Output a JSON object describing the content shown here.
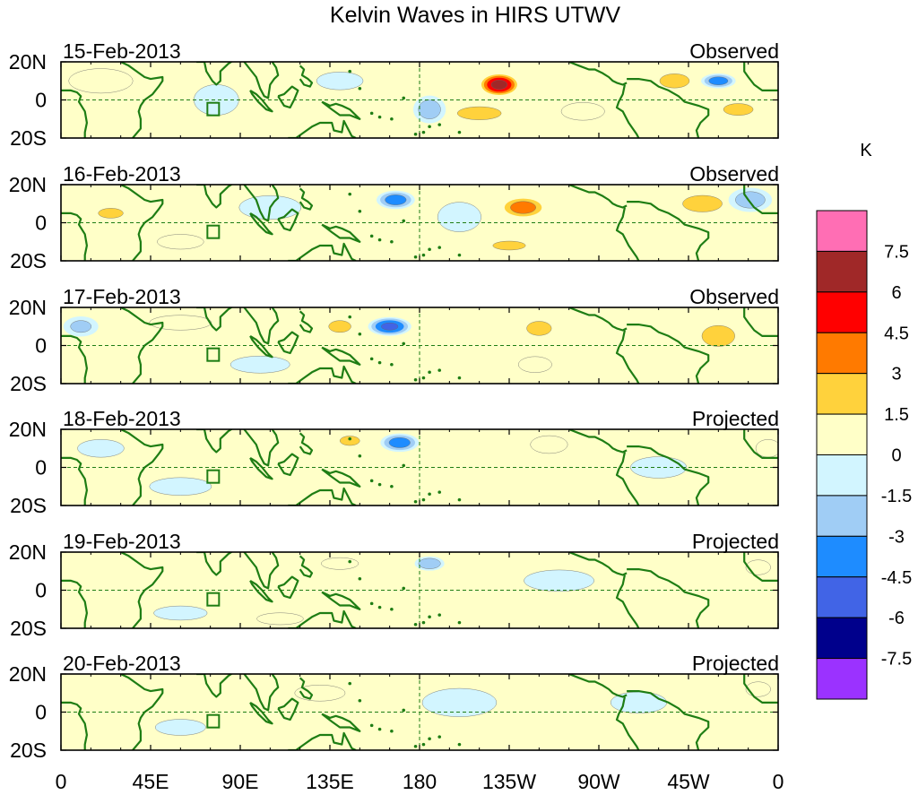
{
  "chart_data": {
    "type": "heatmap",
    "title": "Kelvin Waves in HIRS UTWV",
    "colorbar": {
      "unit": "K",
      "labels": [
        "7.5",
        "6",
        "4.5",
        "3",
        "1.5",
        "0",
        "-1.5",
        "-3",
        "-4.5",
        "-6",
        "-7.5"
      ],
      "boundaries": [
        7.5,
        6,
        4.5,
        3,
        1.5,
        0,
        -1.5,
        -3,
        -4.5,
        -6,
        -7.5
      ],
      "colors": [
        "#ff6eb4",
        "#a02828",
        "#ff0000",
        "#ff7a00",
        "#ffd23c",
        "#ffffc8",
        "#d2f5ff",
        "#a0cdf5",
        "#1e8cff",
        "#4164e6",
        "#00008c",
        "#9b32ff"
      ]
    },
    "x_ticks": [
      "0",
      "45E",
      "90E",
      "135E",
      "180",
      "135W",
      "90W",
      "45W",
      "0"
    ],
    "x_values": [
      0,
      45,
      90,
      135,
      180,
      225,
      270,
      315,
      360
    ],
    "xlim": [
      0,
      360
    ],
    "y_ticks": [
      "20N",
      "0",
      "20S"
    ],
    "y_values": [
      20,
      0,
      -20
    ],
    "ylim": [
      -20,
      20
    ],
    "panels": [
      {
        "date": "15-Feb-2013",
        "status": "Observed",
        "blobs": [
          {
            "lon": 220,
            "lat": 8,
            "value": 7.8,
            "rlon": 10,
            "rlat": 6
          },
          {
            "lon": 210,
            "lat": -7,
            "value": 4.0,
            "rlon": 16,
            "rlat": 5
          },
          {
            "lon": 330,
            "lat": 10,
            "value": -5.0,
            "rlon": 9,
            "rlat": 4
          },
          {
            "lon": 308,
            "lat": 10,
            "value": 3.5,
            "rlon": 12,
            "rlat": 6
          },
          {
            "lon": 340,
            "lat": -5,
            "value": 3.5,
            "rlon": 12,
            "rlat": 5
          },
          {
            "lon": 185,
            "lat": -5,
            "value": -3.5,
            "rlon": 9,
            "rlat": 8
          },
          {
            "lon": 78,
            "lat": 0,
            "value": -2.2,
            "rlon": 14,
            "rlat": 10
          },
          {
            "lon": 20,
            "lat": 10,
            "value": 2.2,
            "rlon": 20,
            "rlat": 8
          },
          {
            "lon": 140,
            "lat": 10,
            "value": -2.0,
            "rlon": 15,
            "rlat": 6
          },
          {
            "lon": 262,
            "lat": -6,
            "value": 2.0,
            "rlon": 14,
            "rlat": 6
          }
        ]
      },
      {
        "date": "16-Feb-2013",
        "status": "Observed",
        "blobs": [
          {
            "lon": 232,
            "lat": 8,
            "value": 5.0,
            "rlon": 12,
            "rlat": 6
          },
          {
            "lon": 225,
            "lat": -12,
            "value": 3.3,
            "rlon": 14,
            "rlat": 4
          },
          {
            "lon": 168,
            "lat": 12,
            "value": -5.0,
            "rlon": 10,
            "rlat": 5
          },
          {
            "lon": 322,
            "lat": 10,
            "value": 3.5,
            "rlon": 16,
            "rlat": 7
          },
          {
            "lon": 346,
            "lat": 12,
            "value": -3.5,
            "rlon": 12,
            "rlat": 7
          },
          {
            "lon": 25,
            "lat": 5,
            "value": 3.0,
            "rlon": 12,
            "rlat": 5
          },
          {
            "lon": 105,
            "lat": 8,
            "value": -2.0,
            "rlon": 20,
            "rlat": 8
          },
          {
            "lon": 200,
            "lat": 3,
            "value": -2.0,
            "rlon": 14,
            "rlat": 10
          },
          {
            "lon": 60,
            "lat": -10,
            "value": 2.0,
            "rlon": 15,
            "rlat": 5
          }
        ]
      },
      {
        "date": "17-Feb-2013",
        "status": "Observed",
        "blobs": [
          {
            "lon": 165,
            "lat": 10,
            "value": -6.0,
            "rlon": 11,
            "rlat": 5
          },
          {
            "lon": 140,
            "lat": 10,
            "value": 3.5,
            "rlon": 9,
            "rlat": 5
          },
          {
            "lon": 240,
            "lat": 9,
            "value": 3.5,
            "rlon": 10,
            "rlat": 6
          },
          {
            "lon": 238,
            "lat": -10,
            "value": 2.5,
            "rlon": 10,
            "rlat": 5
          },
          {
            "lon": 330,
            "lat": 5,
            "value": 4.0,
            "rlon": 12,
            "rlat": 8
          },
          {
            "lon": 10,
            "lat": 10,
            "value": -3.0,
            "rlon": 10,
            "rlat": 6
          },
          {
            "lon": 100,
            "lat": -10,
            "value": -1.8,
            "rlon": 20,
            "rlat": 6
          },
          {
            "lon": 60,
            "lat": 12,
            "value": 2.0,
            "rlon": 20,
            "rlat": 5
          }
        ]
      },
      {
        "date": "18-Feb-2013",
        "status": "Projected",
        "blobs": [
          {
            "lon": 170,
            "lat": 13,
            "value": -5.0,
            "rlon": 10,
            "rlat": 5
          },
          {
            "lon": 145,
            "lat": 14,
            "value": 3.5,
            "rlon": 8,
            "rlat": 4
          },
          {
            "lon": 245,
            "lat": 12,
            "value": 2.0,
            "rlon": 12,
            "rlat": 6
          },
          {
            "lon": 60,
            "lat": -10,
            "value": -2.0,
            "rlon": 20,
            "rlat": 6
          },
          {
            "lon": 20,
            "lat": 10,
            "value": -2.0,
            "rlon": 15,
            "rlat": 6
          },
          {
            "lon": 300,
            "lat": 0,
            "value": -1.6,
            "rlon": 20,
            "rlat": 8
          },
          {
            "lon": 355,
            "lat": 10,
            "value": 2.0,
            "rlon": 8,
            "rlat": 6
          }
        ]
      },
      {
        "date": "19-Feb-2013",
        "status": "Projected",
        "blobs": [
          {
            "lon": 185,
            "lat": 14,
            "value": -4.0,
            "rlon": 8,
            "rlat": 4
          },
          {
            "lon": 140,
            "lat": 14,
            "value": 2.0,
            "rlon": 12,
            "rlat": 4
          },
          {
            "lon": 250,
            "lat": 5,
            "value": -1.6,
            "rlon": 25,
            "rlat": 8
          },
          {
            "lon": 60,
            "lat": -12,
            "value": -1.8,
            "rlon": 18,
            "rlat": 5
          },
          {
            "lon": 110,
            "lat": -15,
            "value": 2.0,
            "rlon": 15,
            "rlat": 4
          },
          {
            "lon": 350,
            "lat": 12,
            "value": 2.0,
            "rlon": 8,
            "rlat": 5
          }
        ]
      },
      {
        "date": "20-Feb-2013",
        "status": "Projected",
        "blobs": [
          {
            "lon": 200,
            "lat": 5,
            "value": -1.8,
            "rlon": 25,
            "rlat": 10
          },
          {
            "lon": 290,
            "lat": 5,
            "value": -1.6,
            "rlon": 20,
            "rlat": 8
          },
          {
            "lon": 60,
            "lat": -8,
            "value": -1.6,
            "rlon": 18,
            "rlat": 6
          },
          {
            "lon": 130,
            "lat": 10,
            "value": 1.6,
            "rlon": 18,
            "rlat": 6
          },
          {
            "lon": 350,
            "lat": 12,
            "value": 2.0,
            "rlon": 8,
            "rlat": 5
          }
        ]
      }
    ]
  }
}
